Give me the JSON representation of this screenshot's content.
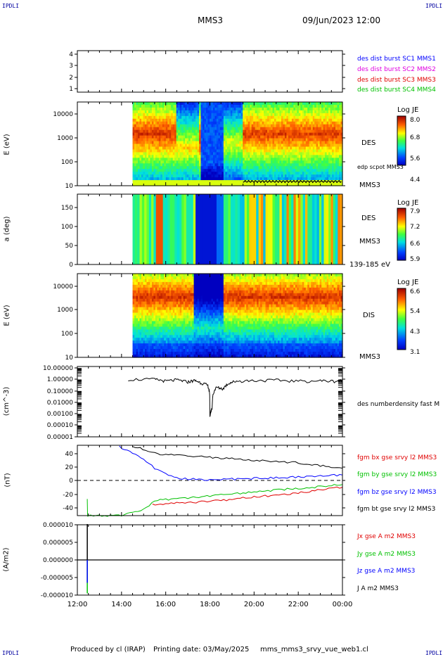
{
  "header": {
    "corner_tl": "IPDLI",
    "corner_tr": "IPDLI",
    "corner_bl": "IPDLI",
    "corner_br": "IPDLI",
    "spacecraft": "MMS3",
    "datetime": "09/Jun/2023 12:00"
  },
  "footer": {
    "produced_by": "Produced by cl (IRAP)",
    "printing_date": "Printing date: 03/May/2025",
    "file": "mms_mms3_srvy_vue_web1.cl"
  },
  "colors": {
    "blue": "#0000ff",
    "magenta": "#e000e0",
    "red": "#e00000",
    "green": "#00c000",
    "black": "#000000"
  },
  "chart_data": [
    {
      "type": "line",
      "name": "burst availability",
      "yticks": [
        "1",
        "2",
        "3",
        "4"
      ],
      "ylim": [
        0.7,
        4.3
      ],
      "legend": [
        {
          "text": "des dist burst SC1 MMS1",
          "color": "#0000ff"
        },
        {
          "text": "des dist burst SC2 MMS2",
          "color": "#e000e0"
        },
        {
          "text": "des dist burst SC3 MMS3",
          "color": "#e00000"
        },
        {
          "text": "des dist burst SC4 MMS4",
          "color": "#00c000"
        }
      ]
    },
    {
      "type": "heatmap",
      "name": "des energy spectrogram",
      "ylabel": "E (eV)",
      "yscale": "log",
      "yticks": [
        "10",
        "100",
        "1000",
        "10000"
      ],
      "right_label": "DES",
      "right_sublabel": "MMS3",
      "overlay_label": "edp scpot MMS3",
      "colorbar": {
        "title": "Log JE",
        "ticks": [
          "8.0",
          "6.8",
          "5.6",
          "4.4"
        ]
      },
      "data_start_hour": 14.5
    },
    {
      "type": "heatmap",
      "name": "des pitch angle",
      "ylabel": "a (deg)",
      "yticks": [
        "0",
        "50",
        "100",
        "150"
      ],
      "right_label": "DES",
      "right_sublabel": "MMS3",
      "energy_range": "139-185 eV",
      "colorbar": {
        "title": "Log JE",
        "ticks": [
          "7.9",
          "7.2",
          "6.6",
          "5.9"
        ]
      }
    },
    {
      "type": "heatmap",
      "name": "dis energy spectrogram",
      "ylabel": "E (eV)",
      "yscale": "log",
      "yticks": [
        "10",
        "100",
        "1000",
        "10000"
      ],
      "right_label": "DIS",
      "right_sublabel": "MMS3",
      "colorbar": {
        "title": "Log JE",
        "ticks": [
          "6.6",
          "5.4",
          "4.3",
          "3.1"
        ]
      }
    },
    {
      "type": "line",
      "name": "density",
      "ylabel": "(cm^-3)",
      "yscale": "log",
      "yticks": [
        "10.00000",
        "1.00000",
        "0.10000",
        "0.01000",
        "0.00100",
        "0.00010",
        "0.00001"
      ],
      "legend": [
        {
          "text": "des numberdensity fast M",
          "color": "#000000"
        }
      ],
      "x": [
        14.3,
        15.5,
        16.0,
        16.5,
        17.0,
        17.3,
        17.6,
        17.9,
        18.0,
        18.1,
        18.3,
        18.6,
        18.9,
        19.2,
        20.0,
        21.0,
        22.0,
        23.0,
        23.7,
        24.0
      ],
      "values": [
        1.0,
        1.0,
        0.7,
        0.9,
        0.6,
        0.8,
        0.5,
        0.3,
        0.0005,
        0.003,
        0.2,
        0.15,
        0.5,
        0.7,
        0.8,
        0.85,
        0.7,
        0.75,
        0.7,
        0.8
      ]
    },
    {
      "type": "line",
      "name": "magnetic field",
      "ylabel": "(nT)",
      "yticks": [
        "40",
        "20",
        "0",
        "-20",
        "-40"
      ],
      "ylim": [
        -52,
        52
      ],
      "legend": [
        {
          "text": "fgm bx gse srvy l2 MMS3",
          "color": "#e00000"
        },
        {
          "text": "fgm by gse srvy l2 MMS3",
          "color": "#00c000"
        },
        {
          "text": "fgm bz gse srvy l2 MMS3",
          "color": "#0000ff"
        },
        {
          "text": "fgm bt gse srvy l2 MMS3",
          "color": "#000000"
        }
      ],
      "series": [
        {
          "color": "#e00000",
          "x": [
            15.4,
            16,
            17,
            18,
            19,
            20,
            21,
            22,
            23,
            24
          ],
          "values": [
            -36,
            -34,
            -33,
            -30,
            -28,
            -24,
            -22,
            -18,
            -14,
            -10
          ]
        },
        {
          "color": "#00c000",
          "x": [
            12.45,
            12.46,
            12.47,
            14.0,
            15.0,
            15.5,
            16,
            17,
            18,
            19,
            20,
            21,
            22,
            23,
            24
          ],
          "values": [
            -28,
            -50,
            -52,
            -52,
            -42,
            -30,
            -28,
            -26,
            -23,
            -20,
            -17,
            -14,
            -12,
            -9,
            -6
          ]
        },
        {
          "color": "#0000ff",
          "x": [
            13.9,
            14.5,
            15.0,
            15.5,
            16,
            16.5,
            17,
            18,
            19,
            20,
            21,
            22,
            23,
            24
          ],
          "values": [
            50,
            40,
            30,
            18,
            10,
            4,
            2,
            1,
            2,
            3,
            4,
            5,
            7,
            8
          ]
        },
        {
          "color": "#000000",
          "x": [
            14.5,
            15.2,
            15.5,
            16,
            17,
            18,
            19,
            20,
            21,
            22,
            23,
            24
          ],
          "values": [
            50,
            44,
            40,
            38,
            36,
            34,
            32,
            30,
            28,
            26,
            22,
            18
          ]
        }
      ]
    },
    {
      "type": "line",
      "name": "current density",
      "ylabel": "(A/m2)",
      "yticks": [
        "0.000010",
        "0.000005",
        "0.000000",
        "-0.000005",
        "-0.000010"
      ],
      "ylim": [
        -1e-05,
        1e-05
      ],
      "legend": [
        {
          "text": "Jx gse A m2 MMS3",
          "color": "#e00000"
        },
        {
          "text": "Jy gse A m2 MMS3",
          "color": "#00c000"
        },
        {
          "text": "Jz gse A m2 MMS3",
          "color": "#0000ff"
        },
        {
          "text": "J A m2 MMS3",
          "color": "#000000"
        }
      ],
      "spike": {
        "x": 12.45,
        "j": 1.02e-05,
        "jz": -6.5e-06,
        "jy": -9.5e-06
      }
    }
  ],
  "xaxis": {
    "ticks": [
      "12:00",
      "14:00",
      "16:00",
      "18:00",
      "20:00",
      "22:00",
      "00:00"
    ],
    "start_hour": 12,
    "end_hour": 24
  }
}
